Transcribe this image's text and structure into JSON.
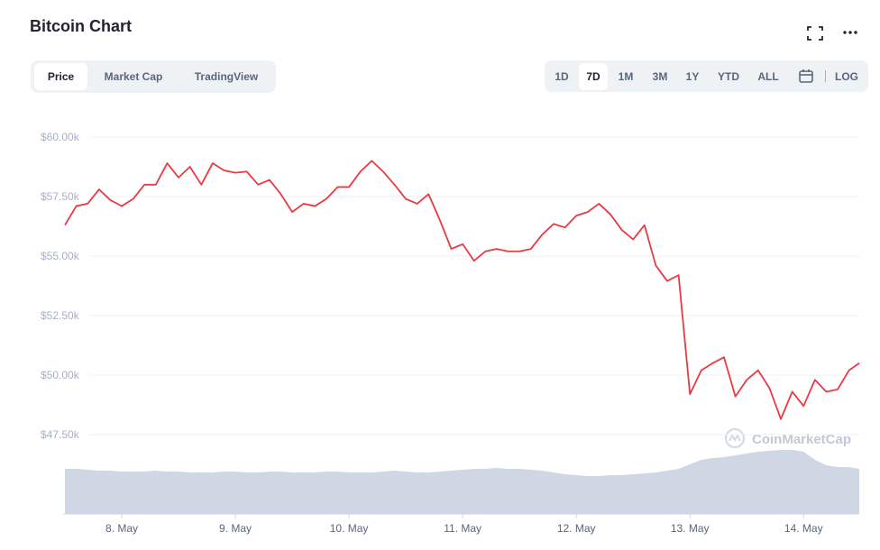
{
  "header": {
    "title": "Bitcoin Chart",
    "tabs": [
      "Price",
      "Market Cap",
      "TradingView"
    ],
    "ranges": [
      "1D",
      "7D",
      "1M",
      "3M",
      "1Y",
      "YTD",
      "ALL"
    ],
    "log": "LOG",
    "watermark": "CoinMarketCap"
  },
  "chart_data": {
    "type": "line",
    "x": [
      7.5,
      7.6,
      7.7,
      7.8,
      7.9,
      8.0,
      8.1,
      8.2,
      8.3,
      8.4,
      8.5,
      8.6,
      8.7,
      8.8,
      8.9,
      9.0,
      9.1,
      9.2,
      9.3,
      9.4,
      9.5,
      9.6,
      9.7,
      9.8,
      9.9,
      10.0,
      10.1,
      10.2,
      10.3,
      10.4,
      10.5,
      10.6,
      10.7,
      10.8,
      10.9,
      11.0,
      11.1,
      11.2,
      11.3,
      11.4,
      11.5,
      11.6,
      11.7,
      11.8,
      11.9,
      12.0,
      12.1,
      12.2,
      12.3,
      12.4,
      12.5,
      12.6,
      12.7,
      12.8,
      12.9,
      13.0,
      13.1,
      13.2,
      13.3,
      13.4,
      13.5,
      13.6,
      13.7,
      13.8,
      13.9,
      14.0,
      14.1,
      14.2,
      14.3,
      14.4,
      14.49
    ],
    "series": [
      {
        "color": "#ea3943",
        "values": [
          56300,
          57100,
          57200,
          57800,
          57350,
          57100,
          57400,
          58000,
          58000,
          58900,
          58300,
          58750,
          58000,
          58900,
          58600,
          58500,
          58550,
          58000,
          58200,
          57600,
          56850,
          57200,
          57100,
          57400,
          57900,
          57900,
          58550,
          59000,
          58550,
          58000,
          57400,
          57200,
          57600,
          56500,
          55300,
          55500,
          54800,
          55200,
          55300,
          55200,
          55200,
          55300,
          55900,
          56350,
          56200,
          56700,
          56850,
          57200,
          56750,
          56100,
          55700,
          56300,
          54600,
          53950,
          54200,
          49200,
          50200,
          50500,
          50750,
          49100,
          49800,
          50200,
          49450,
          48150,
          49300,
          48700,
          49800,
          49300,
          49400,
          50200,
          50500
        ]
      }
    ],
    "volume": {
      "color": "#cfd6e4",
      "ylim": [
        0,
        100
      ],
      "values": [
        50,
        50,
        49,
        48,
        48,
        47,
        47,
        47,
        48,
        47,
        47,
        46,
        46,
        46,
        47,
        47,
        46,
        46,
        47,
        47,
        46,
        46,
        46,
        47,
        47,
        46,
        46,
        46,
        47,
        48,
        47,
        46,
        46,
        47,
        48,
        49,
        50,
        50,
        51,
        50,
        50,
        49,
        48,
        46,
        44,
        43,
        42,
        42,
        43,
        43,
        44,
        45,
        46,
        48,
        50,
        55,
        60,
        62,
        63,
        65,
        67,
        69,
        70,
        71,
        71,
        69,
        60,
        54,
        52,
        52,
        50
      ]
    },
    "xlim": [
      7.484,
      14.49
    ],
    "ylim": [
      44000,
      61000
    ],
    "xticks": [
      {
        "value": 8,
        "label": "8. May"
      },
      {
        "value": 9,
        "label": "9. May"
      },
      {
        "value": 10,
        "label": "10. May"
      },
      {
        "value": 11,
        "label": "11. May"
      },
      {
        "value": 12,
        "label": "12. May"
      },
      {
        "value": 13,
        "label": "13. May"
      },
      {
        "value": 14,
        "label": "14. May"
      }
    ],
    "yticks": [
      {
        "value": 47500,
        "label": "$47.50k"
      },
      {
        "value": 50000,
        "label": "$50.00k"
      },
      {
        "value": 52500,
        "label": "$52.50k"
      },
      {
        "value": 55000,
        "label": "$55.00k"
      },
      {
        "value": 57500,
        "label": "$57.50k"
      },
      {
        "value": 60000,
        "label": "$60.00k"
      }
    ],
    "grid": true
  }
}
